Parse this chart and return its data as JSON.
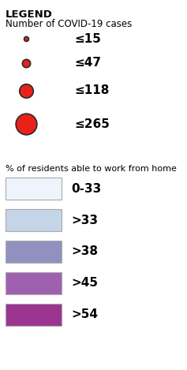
{
  "title": "LEGEND",
  "subtitle1": "Number of COVID-19 cases",
  "subtitle2": "% of residents able to work from home",
  "dot_labels": [
    "≤15",
    "≤47",
    "≤118",
    "≤265"
  ],
  "dot_sizes": [
    18,
    55,
    160,
    370
  ],
  "dot_color": "#e8221a",
  "dot_edge_color": "#2a2a2a",
  "dot_edge_width": 1.2,
  "rect_labels": [
    "0-33",
    ">33",
    ">38",
    ">45",
    ">54"
  ],
  "rect_colors": [
    "#eef4fb",
    "#c5d5e8",
    "#9191c0",
    "#a060b0",
    "#9b3590"
  ],
  "rect_edge_color": "#aaaaaa",
  "background_color": "#ffffff",
  "label_fontsize": 10,
  "title_fontsize": 9.5,
  "subtitle_fontsize": 8.5
}
